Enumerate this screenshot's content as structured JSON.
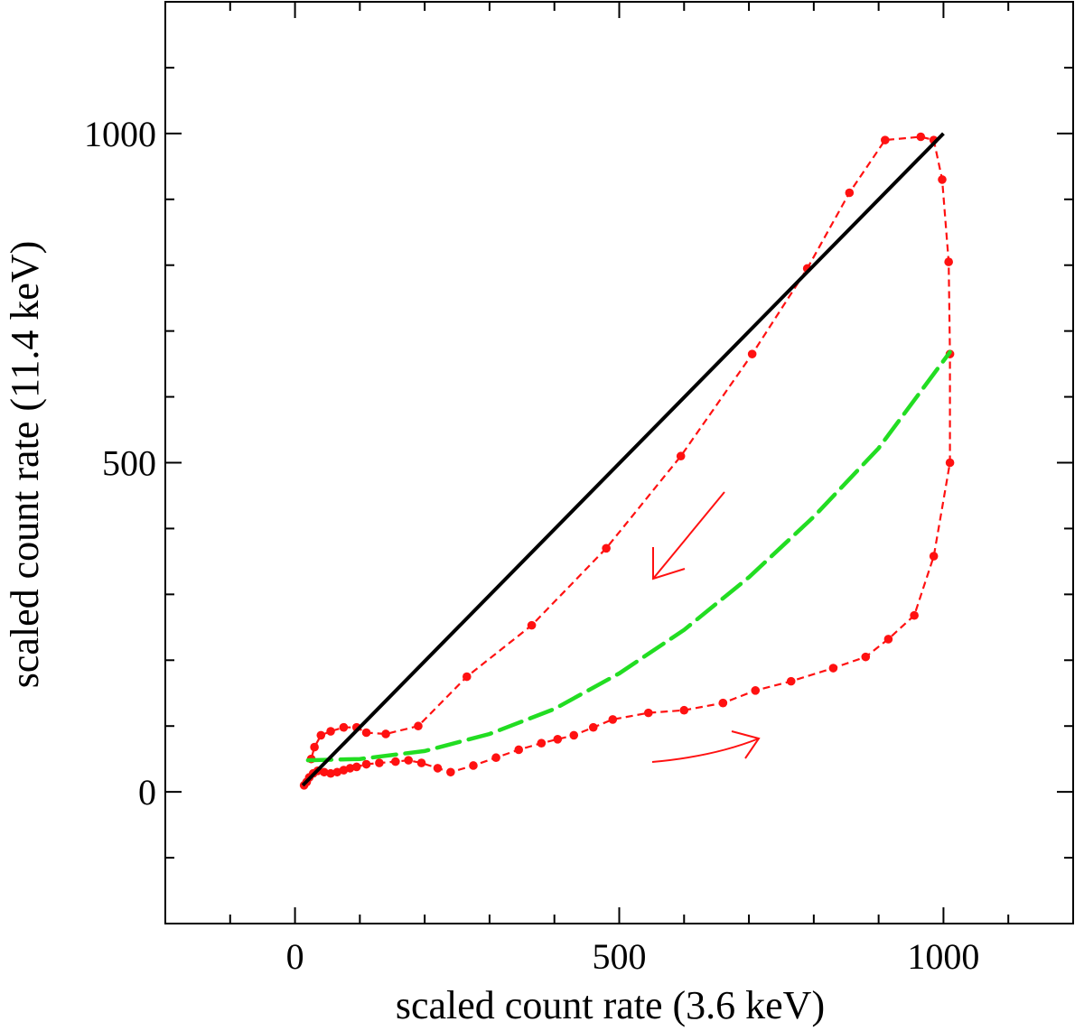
{
  "chart_data": {
    "type": "scatter",
    "title": "",
    "xlabel": "scaled count rate (3.6 keV)",
    "ylabel": "scaled count rate (11.4 keV)",
    "xlim": [
      -200,
      1200
    ],
    "ylim": [
      -200,
      1200
    ],
    "x_ticks": [
      0,
      500,
      1000
    ],
    "y_ticks": [
      0,
      500,
      1000
    ],
    "x_minor_step": 100,
    "y_minor_step": 100,
    "grid": false,
    "series": [
      {
        "name": "identity line",
        "style": "solid",
        "color": "#000000",
        "x": [
          12,
          1000
        ],
        "y": [
          10,
          1000
        ]
      },
      {
        "name": "model curve",
        "style": "dashed",
        "color": "#22dd22",
        "x": [
          20,
          100,
          200,
          300,
          400,
          500,
          600,
          700,
          800,
          900,
          1010
        ],
        "y": [
          48,
          50,
          62,
          88,
          126,
          180,
          246,
          326,
          418,
          522,
          668
        ]
      },
      {
        "name": "data loop",
        "style": "dashed-markers",
        "color": "#ff1111",
        "x": [
          14,
          18,
          22,
          28,
          35,
          45,
          55,
          65,
          75,
          85,
          95,
          110,
          130,
          155,
          175,
          195,
          220,
          240,
          275,
          310,
          345,
          380,
          405,
          430,
          460,
          490,
          545,
          600,
          660,
          710,
          765,
          830,
          880,
          915,
          955,
          985,
          1010,
          1010,
          1008,
          998,
          985,
          965,
          910,
          855,
          790,
          705,
          595,
          480,
          365,
          265,
          190,
          140,
          110,
          95,
          75,
          55,
          40,
          30,
          25
        ],
        "y": [
          10,
          15,
          22,
          28,
          32,
          30,
          28,
          30,
          33,
          36,
          38,
          42,
          44,
          46,
          48,
          44,
          36,
          30,
          40,
          52,
          64,
          74,
          80,
          86,
          98,
          110,
          120,
          124,
          135,
          154,
          168,
          188,
          205,
          232,
          268,
          358,
          500,
          665,
          805,
          930,
          990,
          995,
          990,
          910,
          795,
          665,
          510,
          370,
          253,
          175,
          100,
          88,
          90,
          98,
          98,
          92,
          86,
          68,
          50
        ]
      }
    ],
    "annotations": [
      {
        "kind": "arrow",
        "direction": "down-left",
        "color": "#ff1111"
      },
      {
        "kind": "arrow",
        "direction": "right",
        "color": "#ff1111"
      }
    ]
  }
}
